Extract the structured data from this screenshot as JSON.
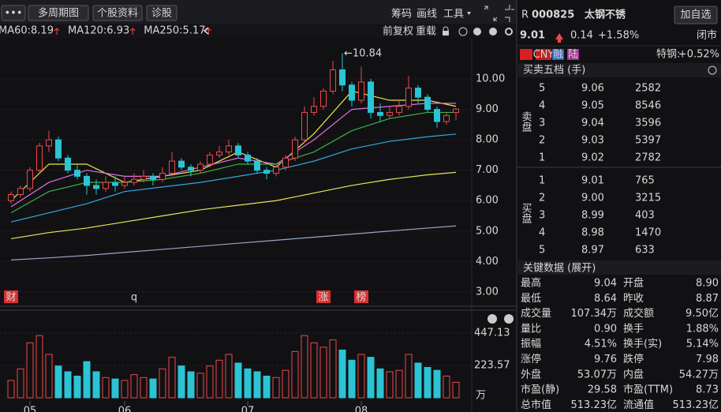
{
  "toolbar": {
    "buttons": [
      "•••",
      "多周期图",
      "个股资料",
      "诊股"
    ],
    "tools": [
      "筹码",
      "画线",
      "工具"
    ],
    "options": [
      "前复权",
      "重载"
    ]
  },
  "chart": {
    "type": "candlestick",
    "ylim": [
      2.53,
      11.35
    ],
    "yticks": [
      {
        "value": 3,
        "label": "3.00"
      },
      {
        "value": 4,
        "label": "4.00"
      },
      {
        "value": 5,
        "label": "5.00"
      },
      {
        "value": 6,
        "label": "6.00"
      },
      {
        "value": 7,
        "label": "7.00"
      },
      {
        "value": 8,
        "label": "8.00"
      },
      {
        "value": 9,
        "label": "9.00"
      },
      {
        "value": 10,
        "label": "10.00"
      }
    ],
    "grid": true,
    "up_color": "#f04848",
    "down_color": "#2ac4d4",
    "candles": [
      [
        6.0,
        6.3,
        5.9,
        6.2
      ],
      [
        6.2,
        6.5,
        6.1,
        6.4
      ],
      [
        6.4,
        7.1,
        6.3,
        7.0
      ],
      [
        7.0,
        7.9,
        6.9,
        7.8
      ],
      [
        7.8,
        8.3,
        7.6,
        8.0
      ],
      [
        8.0,
        8.1,
        7.3,
        7.4
      ],
      [
        7.4,
        7.5,
        6.9,
        7.0
      ],
      [
        7.0,
        7.2,
        6.7,
        6.8
      ],
      [
        6.8,
        6.9,
        6.2,
        6.5
      ],
      [
        6.5,
        6.7,
        6.2,
        6.4
      ],
      [
        6.4,
        6.8,
        6.3,
        6.6
      ],
      [
        6.6,
        6.8,
        6.3,
        6.5
      ],
      [
        6.5,
        6.8,
        6.4,
        6.6
      ],
      [
        6.6,
        6.9,
        6.5,
        6.7
      ],
      [
        6.7,
        7.0,
        6.6,
        6.8
      ],
      [
        6.8,
        6.9,
        6.5,
        6.7
      ],
      [
        6.7,
        7.1,
        6.6,
        6.9
      ],
      [
        6.9,
        7.6,
        6.8,
        7.3
      ],
      [
        7.3,
        7.4,
        7.0,
        7.1
      ],
      [
        7.1,
        7.2,
        6.8,
        7.0
      ],
      [
        7.0,
        7.3,
        6.9,
        7.2
      ],
      [
        7.2,
        7.6,
        7.1,
        7.5
      ],
      [
        7.5,
        7.8,
        7.4,
        7.6
      ],
      [
        7.6,
        8.0,
        7.5,
        7.8
      ],
      [
        7.8,
        7.9,
        7.4,
        7.5
      ],
      [
        7.5,
        7.6,
        7.2,
        7.3
      ],
      [
        7.3,
        7.4,
        6.9,
        7.0
      ],
      [
        7.0,
        7.1,
        6.7,
        6.9
      ],
      [
        6.9,
        7.2,
        6.8,
        7.1
      ],
      [
        7.1,
        7.5,
        7.0,
        7.4
      ],
      [
        7.4,
        8.1,
        7.3,
        8.0
      ],
      [
        8.0,
        9.1,
        7.9,
        8.9
      ],
      [
        8.9,
        9.4,
        8.8,
        9.1
      ],
      [
        9.1,
        9.7,
        9.0,
        9.6
      ],
      [
        9.6,
        10.6,
        9.5,
        10.3
      ],
      [
        10.3,
        10.84,
        9.6,
        9.8
      ],
      [
        9.8,
        9.9,
        9.1,
        9.3
      ],
      [
        9.3,
        10.4,
        9.2,
        9.9
      ],
      [
        9.9,
        10.0,
        8.7,
        8.9
      ],
      [
        8.9,
        9.2,
        8.6,
        8.8
      ],
      [
        8.8,
        9.1,
        8.7,
        8.9
      ],
      [
        8.9,
        9.3,
        8.8,
        9.1
      ],
      [
        9.1,
        10.1,
        9.0,
        9.7
      ],
      [
        9.7,
        9.8,
        9.2,
        9.4
      ],
      [
        9.4,
        9.5,
        8.9,
        9.0
      ],
      [
        9.0,
        9.1,
        8.4,
        8.6
      ],
      [
        8.6,
        8.9,
        8.5,
        8.8
      ],
      [
        8.9,
        9.04,
        8.64,
        9.01
      ]
    ],
    "ma_index": [
      0,
      4,
      8,
      12,
      16,
      20,
      24,
      28,
      32,
      36,
      40,
      44,
      47
    ],
    "series": [
      {
        "color": "#e8e84a",
        "values": [
          6.0,
          7.2,
          7.2,
          6.6,
          6.8,
          7.0,
          7.6,
          7.1,
          8.2,
          9.6,
          9.3,
          9.3,
          9.1
        ]
      },
      {
        "color": "#e070e0",
        "values": [
          5.8,
          6.6,
          7.0,
          6.8,
          6.8,
          7.1,
          7.4,
          7.2,
          8.0,
          9.0,
          9.1,
          9.2,
          9.2
        ]
      },
      {
        "color": "#3cb04a",
        "values": [
          5.6,
          6.3,
          6.6,
          6.6,
          6.7,
          6.9,
          7.2,
          7.2,
          7.6,
          8.3,
          8.7,
          8.9,
          8.9
        ]
      },
      {
        "name": "MA60:8.19",
        "color": "#31a8e0",
        "values": [
          5.3,
          5.6,
          5.9,
          6.3,
          6.45,
          6.6,
          6.8,
          7.0,
          7.3,
          7.7,
          7.95,
          8.1,
          8.19
        ]
      },
      {
        "name": "MA120:6.93",
        "color": "#e6e65a",
        "values": [
          4.75,
          4.95,
          5.1,
          5.3,
          5.5,
          5.7,
          5.85,
          6.0,
          6.25,
          6.5,
          6.7,
          6.85,
          6.93
        ]
      },
      {
        "name": "MA250:5.17",
        "color": "#9aa4c8",
        "values": [
          4.05,
          4.12,
          4.2,
          4.3,
          4.4,
          4.5,
          4.6,
          4.7,
          4.8,
          4.9,
          5.0,
          5.1,
          5.17
        ]
      }
    ],
    "high_label": "←10.84",
    "high_index": 35,
    "markers": [
      {
        "index": 0,
        "label": "财",
        "style": "box"
      },
      {
        "index": 13,
        "label": "q",
        "style": "text"
      },
      {
        "index": 33,
        "label": "涨",
        "style": "box"
      },
      {
        "index": 37,
        "label": "榜",
        "style": "box"
      }
    ]
  },
  "volume": {
    "type": "bar",
    "ylim": [
      0,
      540
    ],
    "yticks": [
      223.57,
      447.13
    ],
    "unit": "万",
    "values": [
      120,
      200,
      380,
      430,
      300,
      220,
      180,
      150,
      250,
      180,
      140,
      130,
      120,
      160,
      140,
      130,
      200,
      280,
      220,
      180,
      170,
      220,
      260,
      300,
      240,
      200,
      180,
      150,
      140,
      190,
      320,
      430,
      380,
      350,
      400,
      330,
      260,
      300,
      280,
      200,
      180,
      190,
      300,
      240,
      210,
      190,
      150,
      107.34
    ],
    "x_labels": [
      "05",
      "06",
      "07",
      "08"
    ],
    "x_label_index": [
      2,
      12,
      25,
      37
    ]
  },
  "quote": {
    "prefix": "R",
    "code": "000825",
    "name": "太钢不锈",
    "button": "加自选",
    "price": "9.01",
    "change": "0.14",
    "pct": "+1.58%",
    "status": "闭市",
    "tags": [
      "CNY",
      "融",
      "陆"
    ],
    "sector": "特钢:",
    "sector_pct": "+0.52%"
  },
  "book": {
    "title": "买卖五档 (手)",
    "sell_label": "卖盘",
    "buy_label": "买盘",
    "sell": [
      [
        "5",
        "9.06",
        "2582"
      ],
      [
        "4",
        "9.05",
        "8546"
      ],
      [
        "3",
        "9.04",
        "3596"
      ],
      [
        "2",
        "9.03",
        "5397"
      ],
      [
        "1",
        "9.02",
        "2782"
      ]
    ],
    "buy": [
      [
        "1",
        "9.01",
        "765"
      ],
      [
        "2",
        "9.00",
        "3215"
      ],
      [
        "3",
        "8.99",
        "403"
      ],
      [
        "4",
        "8.98",
        "1470"
      ],
      [
        "5",
        "8.97",
        "633"
      ]
    ]
  },
  "key_data": {
    "title": "关键数据 (展开)",
    "rows": [
      [
        {
          "label": "最高",
          "value": "9.04",
          "color": "#f04848"
        },
        {
          "label": "开盘",
          "value": "8.90",
          "color": "#f04848"
        }
      ],
      [
        {
          "label": "最低",
          "value": "8.64",
          "color": "#3cd04a"
        },
        {
          "label": "昨收",
          "value": "8.87",
          "color": "#ffffff"
        }
      ],
      [
        {
          "label": "成交量",
          "value": "107.34万",
          "color": "#4fa3e0"
        },
        {
          "label": "成交额",
          "value": "9.50亿",
          "color": "#4fa3e0"
        }
      ],
      [
        {
          "label": "量比",
          "value": "0.90",
          "color": "#4fa3e0"
        },
        {
          "label": "换手",
          "value": "1.88%",
          "color": "#4fa3e0"
        }
      ],
      [
        {
          "label": "振幅",
          "value": "4.51%",
          "color": "#4fa3e0"
        },
        {
          "label": "换手(实)",
          "value": "5.14%",
          "color": "#4fa3e0"
        }
      ],
      [
        {
          "label": "涨停",
          "value": "9.76",
          "color": "#f04848"
        },
        {
          "label": "跌停",
          "value": "7.98",
          "color": "#3cd04a"
        }
      ],
      [
        {
          "label": "外盘",
          "value": "53.07万",
          "color": "#f04848"
        },
        {
          "label": "内盘",
          "value": "54.27万",
          "color": "#3cd04a"
        }
      ],
      [
        {
          "label": "市盈(静)",
          "value": "29.58",
          "color": "#4fa3e0"
        },
        {
          "label": "市盈(TTM)",
          "value": "8.73",
          "color": "#4fa3e0"
        }
      ],
      [
        {
          "label": "总市值",
          "value": "513.23亿",
          "color": "#4fa3e0"
        },
        {
          "label": "流通值",
          "value": "513.23亿",
          "color": "#4fa3e0"
        }
      ]
    ]
  }
}
